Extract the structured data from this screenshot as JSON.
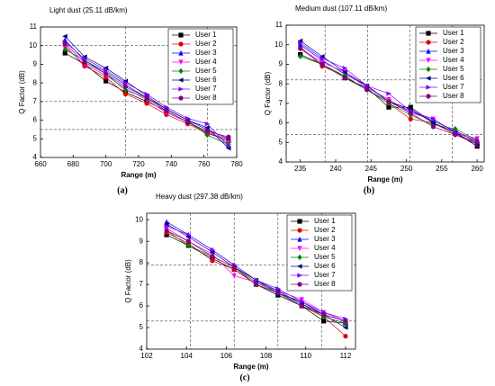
{
  "chart_data": [
    {
      "type": "line",
      "title": "Light dust (25.11 dB/km)",
      "label": "(a)",
      "x_label": "Range (m)",
      "y_label": "Q Factor (dB)",
      "x": [
        675,
        687,
        700,
        712,
        725,
        737,
        750,
        762,
        775
      ],
      "xlim": [
        660,
        780
      ],
      "xticks": [
        660,
        680,
        700,
        720,
        740,
        760,
        780
      ],
      "ylim": [
        4,
        11
      ],
      "yticks": [
        4,
        5,
        6,
        7,
        8,
        9,
        10,
        11
      ],
      "reference_x": [
        712,
        762
      ],
      "reference_y": [
        10,
        7,
        5.5
      ],
      "legend": "top-right",
      "series": [
        {
          "name": "User 1",
          "color": "#000000",
          "marker": "square",
          "values": [
            9.6,
            9.0,
            8.1,
            7.5,
            7.0,
            6.5,
            5.9,
            5.3,
            4.9
          ]
        },
        {
          "name": "User 2",
          "color": "#e00000",
          "marker": "circle",
          "values": [
            10.0,
            8.9,
            8.3,
            7.4,
            6.9,
            6.3,
            5.8,
            5.3,
            5.0
          ]
        },
        {
          "name": "User 3",
          "color": "#0000ff",
          "marker": "triangle-up",
          "values": [
            10.3,
            9.2,
            8.6,
            7.9,
            7.2,
            6.6,
            6.0,
            5.5,
            5.0
          ]
        },
        {
          "name": "User 4",
          "color": "#ff00ff",
          "marker": "triangle-down",
          "values": [
            9.9,
            9.0,
            8.4,
            7.7,
            7.1,
            6.4,
            5.9,
            5.4,
            4.8
          ]
        },
        {
          "name": "User 5",
          "color": "#008000",
          "marker": "diamond",
          "values": [
            9.8,
            9.2,
            8.5,
            7.6,
            7.2,
            6.6,
            6.0,
            5.2,
            4.7
          ]
        },
        {
          "name": "User 6",
          "color": "#000080",
          "marker": "triangle-left",
          "values": [
            10.5,
            9.4,
            8.8,
            8.1,
            7.3,
            6.6,
            6.0,
            5.6,
            4.5
          ]
        },
        {
          "name": "User 7",
          "color": "#8000ff",
          "marker": "triangle-right",
          "values": [
            10.2,
            9.3,
            8.7,
            8.0,
            7.4,
            6.7,
            6.1,
            5.8,
            4.6
          ]
        },
        {
          "name": "User 8",
          "color": "#800080",
          "marker": "circle",
          "values": [
            10.1,
            9.1,
            8.5,
            7.8,
            7.2,
            6.5,
            5.9,
            5.4,
            5.1
          ]
        }
      ]
    },
    {
      "type": "line",
      "title": "Medium dust (107.11 dB/km)",
      "label": "(b)",
      "x_label": "Range (m)",
      "y_label": "Q Factor (dB)",
      "x": [
        235,
        238.1,
        241.3,
        244.4,
        247.5,
        250.6,
        253.8,
        256.9,
        260
      ],
      "xlim": [
        233,
        261
      ],
      "xticks": [
        235,
        240,
        245,
        250,
        255,
        260
      ],
      "ylim": [
        4,
        11
      ],
      "yticks": [
        4,
        5,
        6,
        7,
        8,
        9,
        10,
        11
      ],
      "reference_x": [
        238.5,
        244.5,
        250.5,
        256.5
      ],
      "reference_y": [
        8.2,
        5.4
      ],
      "legend": "top-right",
      "series": [
        {
          "name": "User 1",
          "color": "#000000",
          "marker": "square",
          "values": [
            9.5,
            9.0,
            8.3,
            7.8,
            6.8,
            6.8,
            6.0,
            5.5,
            4.8
          ]
        },
        {
          "name": "User 2",
          "color": "#e00000",
          "marker": "circle",
          "values": [
            9.9,
            8.9,
            8.4,
            7.7,
            7.0,
            6.2,
            6.0,
            5.4,
            4.9
          ]
        },
        {
          "name": "User 3",
          "color": "#0000ff",
          "marker": "triangle-up",
          "values": [
            10.0,
            9.2,
            8.5,
            7.9,
            7.1,
            6.6,
            6.1,
            5.6,
            5.0
          ]
        },
        {
          "name": "User 4",
          "color": "#ff00ff",
          "marker": "triangle-down",
          "values": [
            9.8,
            9.1,
            8.6,
            7.8,
            7.2,
            6.5,
            6.2,
            5.5,
            5.2
          ]
        },
        {
          "name": "User 5",
          "color": "#008000",
          "marker": "diamond",
          "values": [
            9.4,
            9.0,
            8.4,
            7.7,
            7.0,
            6.4,
            5.9,
            5.7,
            5.1
          ]
        },
        {
          "name": "User 6",
          "color": "#000080",
          "marker": "triangle-left",
          "values": [
            10.2,
            9.4,
            8.6,
            7.9,
            7.1,
            6.7,
            6.0,
            5.5,
            4.9
          ]
        },
        {
          "name": "User 7",
          "color": "#8000ff",
          "marker": "triangle-right",
          "values": [
            10.1,
            9.3,
            8.8,
            7.9,
            7.5,
            6.6,
            6.2,
            5.5,
            5.1
          ]
        },
        {
          "name": "User 8",
          "color": "#800080",
          "marker": "circle",
          "values": [
            9.8,
            9.0,
            8.3,
            7.7,
            7.1,
            6.5,
            5.8,
            5.4,
            5.0
          ]
        }
      ]
    },
    {
      "type": "line",
      "title": "Heavy dust (297.38 dB/km)",
      "label": "(c)",
      "x_label": "Range (m)",
      "y_label": "Q Factor (dB)",
      "x": [
        103,
        104.1,
        105.3,
        106.4,
        107.5,
        108.6,
        109.8,
        110.9,
        112
      ],
      "xlim": [
        102,
        112.5
      ],
      "xticks": [
        102,
        104,
        106,
        108,
        110,
        112
      ],
      "ylim": [
        4,
        10.3
      ],
      "yticks": [
        4,
        5,
        6,
        7,
        8,
        9,
        10
      ],
      "reference_x": [
        104.2,
        106.4,
        108.6,
        110.8
      ],
      "reference_y": [
        7.9,
        5.3
      ],
      "legend": "top-right",
      "series": [
        {
          "name": "User 1",
          "color": "#000000",
          "marker": "square",
          "values": [
            9.3,
            8.8,
            8.2,
            7.7,
            7.0,
            6.5,
            6.0,
            5.3,
            5.2
          ]
        },
        {
          "name": "User 2",
          "color": "#e00000",
          "marker": "circle",
          "values": [
            9.4,
            8.9,
            8.1,
            7.7,
            7.0,
            6.6,
            6.0,
            5.5,
            4.6
          ]
        },
        {
          "name": "User 3",
          "color": "#0000ff",
          "marker": "triangle-up",
          "values": [
            9.9,
            9.3,
            8.6,
            7.9,
            7.2,
            6.6,
            6.2,
            5.6,
            5.3
          ]
        },
        {
          "name": "User 4",
          "color": "#ff00ff",
          "marker": "triangle-down",
          "values": [
            9.6,
            9.0,
            8.4,
            7.4,
            7.1,
            6.7,
            6.3,
            5.7,
            5.3
          ]
        },
        {
          "name": "User 5",
          "color": "#008000",
          "marker": "diamond",
          "values": [
            9.5,
            8.8,
            8.3,
            7.8,
            7.1,
            6.6,
            6.1,
            5.5,
            5.2
          ]
        },
        {
          "name": "User 6",
          "color": "#000080",
          "marker": "triangle-left",
          "values": [
            9.8,
            9.2,
            8.5,
            7.8,
            7.2,
            6.7,
            6.1,
            5.6,
            5.0
          ]
        },
        {
          "name": "User 7",
          "color": "#8000ff",
          "marker": "triangle-right",
          "values": [
            9.7,
            9.3,
            8.6,
            7.9,
            7.2,
            6.8,
            6.2,
            5.7,
            5.4
          ]
        },
        {
          "name": "User 8",
          "color": "#800080",
          "marker": "circle",
          "values": [
            9.5,
            9.0,
            8.3,
            7.8,
            7.0,
            6.6,
            6.0,
            5.6,
            5.3
          ]
        }
      ]
    }
  ]
}
